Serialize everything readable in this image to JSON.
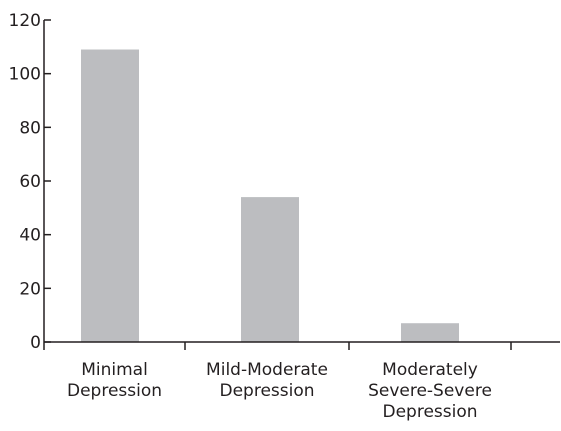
{
  "chart_data": {
    "type": "bar",
    "categories": [
      [
        "Minimal",
        "Depression"
      ],
      [
        "Mild-Moderate",
        "Depression"
      ],
      [
        "Moderately",
        "Severe-Severe",
        "Depression"
      ]
    ],
    "values": [
      109,
      54,
      7
    ],
    "ylim": [
      0,
      120
    ],
    "yticks": [
      0,
      20,
      40,
      60,
      80,
      100,
      120
    ],
    "ytick_labels": [
      "0",
      "20",
      "40",
      "60",
      "80",
      "100",
      "120"
    ],
    "title": "",
    "xlabel": "",
    "ylabel": "",
    "grid": false,
    "bar_color": "#bcbdc0",
    "axis_color": "#231f20"
  }
}
